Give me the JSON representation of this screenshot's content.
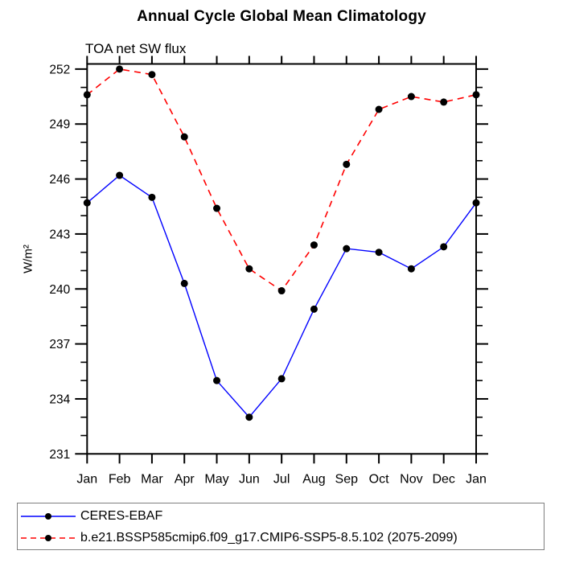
{
  "page": {
    "background": "#ffffff"
  },
  "chart_data": {
    "type": "line",
    "title": "Annual Cycle Global Mean Climatology",
    "subtitle": "TOA net SW flux",
    "ylabel": "W/m²",
    "xlabel": "",
    "x_tick_labels": [
      "Jan",
      "Feb",
      "Mar",
      "Apr",
      "May",
      "Jun",
      "Jul",
      "Aug",
      "Sep",
      "Oct",
      "Nov",
      "Dec",
      "Jan"
    ],
    "y_ticks": [
      231,
      234,
      237,
      240,
      243,
      246,
      249,
      252
    ],
    "y_minor_step": 1,
    "ylim": [
      231,
      252.3
    ],
    "grid": false,
    "legend_position": "bottom-left-box",
    "colors": {
      "axis": "#000000",
      "marker": "#000000",
      "legend_border": "#808080",
      "series_blue": "#0000ff",
      "series_red": "#ff0000"
    },
    "series": [
      {
        "name": "CERES-EBAF",
        "color": "#0000ff",
        "line_style": "solid",
        "marker": "circle",
        "marker_color": "#000000",
        "values": [
          244.7,
          246.2,
          245.0,
          240.3,
          235.0,
          233.0,
          235.1,
          238.9,
          242.2,
          242.0,
          241.1,
          242.3,
          244.7
        ]
      },
      {
        "name": "b.e21.BSSP585cmip6.f09_g17.CMIP6-SSP5-8.5.102 (2075-2099)",
        "color": "#ff0000",
        "line_style": "dashed",
        "marker": "circle",
        "marker_color": "#000000",
        "values": [
          250.6,
          252.0,
          251.7,
          248.3,
          244.4,
          241.1,
          239.9,
          242.4,
          246.8,
          249.8,
          250.5,
          250.2,
          250.6
        ]
      }
    ]
  }
}
